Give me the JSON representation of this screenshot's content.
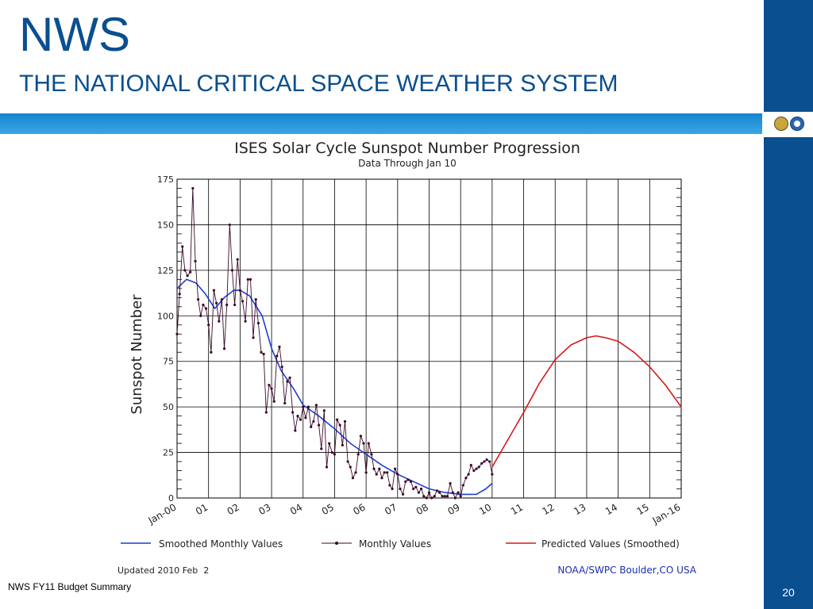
{
  "slide": {
    "title": "NWS",
    "subtitle": "THE NATIONAL CRITICAL SPACE WEATHER SYSTEM",
    "footer": "NWS FY11 Budget Summary",
    "page_number": "20"
  },
  "colors": {
    "brand_blue": "#0a4f8f",
    "stripe_blue": "#1f8fd6",
    "smoothed": "#1f3fd0",
    "monthly": "#3a0a2a",
    "predicted": "#d81818"
  },
  "chart_data": {
    "type": "line",
    "title": "ISES Solar Cycle Sunspot Number Progression",
    "subtitle": "Data Through Jan 10",
    "xlabel": "",
    "ylabel": "Sunspot Number",
    "xlim": [
      2000,
      2016
    ],
    "ylim": [
      0,
      175
    ],
    "yticks": [
      0,
      25,
      50,
      75,
      100,
      125,
      150,
      175
    ],
    "xtick_labels": [
      "Jan-00",
      "01",
      "02",
      "03",
      "04",
      "05",
      "06",
      "07",
      "08",
      "09",
      "10",
      "11",
      "12",
      "13",
      "14",
      "15",
      "Jan-16"
    ],
    "grid": true,
    "legend_position": "bottom",
    "series": [
      {
        "name": "Smoothed Monthly Values",
        "x": [
          2000.0,
          2000.3,
          2000.6,
          2000.9,
          2001.2,
          2001.5,
          2001.8,
          2002.0,
          2002.3,
          2002.7,
          2003.0,
          2003.3,
          2003.7,
          2004.0,
          2004.5,
          2005.0,
          2005.5,
          2006.0,
          2006.5,
          2007.0,
          2007.5,
          2008.0,
          2008.5,
          2009.0,
          2009.5,
          2009.8,
          2010.0
        ],
        "y": [
          115,
          120,
          118,
          112,
          104,
          110,
          114,
          114,
          111,
          100,
          82,
          70,
          60,
          51,
          45,
          38,
          30,
          24,
          18,
          13,
          9,
          5,
          3,
          2,
          2,
          5,
          8
        ]
      },
      {
        "name": "Monthly Values",
        "x": [
          2000.0,
          2000.08,
          2000.17,
          2000.25,
          2000.33,
          2000.42,
          2000.5,
          2000.58,
          2000.67,
          2000.75,
          2000.83,
          2000.92,
          2001.0,
          2001.08,
          2001.17,
          2001.25,
          2001.33,
          2001.42,
          2001.5,
          2001.58,
          2001.67,
          2001.75,
          2001.83,
          2001.92,
          2002.0,
          2002.08,
          2002.17,
          2002.25,
          2002.33,
          2002.42,
          2002.5,
          2002.58,
          2002.67,
          2002.75,
          2002.83,
          2002.92,
          2003.0,
          2003.08,
          2003.17,
          2003.25,
          2003.33,
          2003.42,
          2003.5,
          2003.58,
          2003.67,
          2003.75,
          2003.83,
          2003.92,
          2004.0,
          2004.08,
          2004.17,
          2004.25,
          2004.33,
          2004.42,
          2004.5,
          2004.58,
          2004.67,
          2004.75,
          2004.83,
          2004.92,
          2005.0,
          2005.08,
          2005.17,
          2005.25,
          2005.33,
          2005.42,
          2005.5,
          2005.58,
          2005.67,
          2005.75,
          2005.83,
          2005.92,
          2006.0,
          2006.08,
          2006.17,
          2006.25,
          2006.33,
          2006.42,
          2006.5,
          2006.58,
          2006.67,
          2006.75,
          2006.83,
          2006.92,
          2007.0,
          2007.08,
          2007.17,
          2007.25,
          2007.33,
          2007.42,
          2007.5,
          2007.58,
          2007.67,
          2007.75,
          2007.83,
          2007.92,
          2008.0,
          2008.08,
          2008.17,
          2008.25,
          2008.33,
          2008.42,
          2008.5,
          2008.58,
          2008.67,
          2008.75,
          2008.83,
          2008.92,
          2009.0,
          2009.08,
          2009.17,
          2009.25,
          2009.33,
          2009.42,
          2009.5,
          2009.58,
          2009.67,
          2009.75,
          2009.83,
          2009.92,
          2010.0
        ],
        "y": [
          90,
          112,
          138,
          125,
          122,
          124,
          170,
          130,
          109,
          100,
          106,
          104,
          95,
          80,
          114,
          107,
          97,
          109,
          82,
          106,
          150,
          125,
          106,
          131,
          114,
          108,
          97,
          120,
          120,
          88,
          109,
          96,
          80,
          79,
          47,
          62,
          60,
          53,
          78,
          83,
          72,
          52,
          64,
          66,
          47,
          37,
          45,
          43,
          50,
          44,
          50,
          39,
          42,
          51,
          40,
          27,
          48,
          17,
          30,
          25,
          24,
          43,
          40,
          29,
          42,
          20,
          17,
          11,
          14,
          24,
          34,
          30,
          14,
          30,
          24,
          16,
          13,
          16,
          11,
          14,
          14,
          7,
          5,
          16,
          13,
          5,
          2,
          9,
          10,
          9,
          5,
          6,
          3,
          5,
          1,
          0,
          3,
          0,
          1,
          4,
          3,
          1,
          1,
          1,
          8,
          3,
          0,
          3,
          1,
          7,
          11,
          13,
          18,
          15,
          16,
          17,
          19,
          20,
          21,
          20,
          13
        ]
      },
      {
        "name": "Predicted Values (Smoothed)",
        "x": [
          2010.0,
          2010.5,
          2011.0,
          2011.5,
          2012.0,
          2012.5,
          2013.0,
          2013.3,
          2013.6,
          2014.0,
          2014.5,
          2015.0,
          2015.5,
          2016.0
        ],
        "y": [
          17,
          32,
          47,
          63,
          76,
          84,
          88,
          89,
          88,
          86,
          80,
          72,
          62,
          50
        ]
      }
    ],
    "footnote_left": "Updated 2010 Feb  2",
    "footnote_right": "NOAA/SWPC Boulder,CO USA"
  }
}
